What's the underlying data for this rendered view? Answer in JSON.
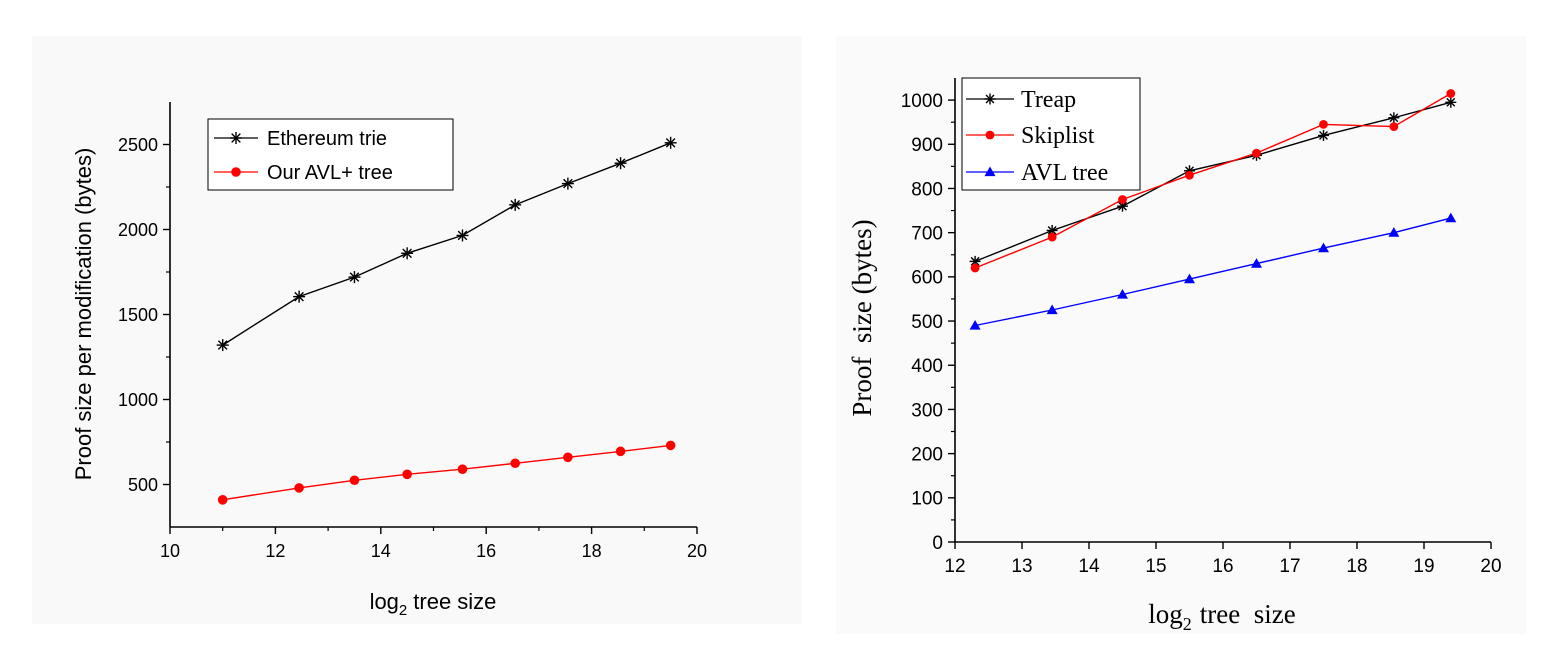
{
  "chart_data": [
    {
      "type": "line",
      "title": "",
      "xlabel": "tree size",
      "xlabel_prefix": "log",
      "xlabel_sub": "2",
      "ylabel": "Proof size per modification (bytes)",
      "xlim": [
        10,
        20
      ],
      "ylim": [
        250,
        2750
      ],
      "xticks": [
        "10",
        "12",
        "14",
        "16",
        "18",
        "20"
      ],
      "yticks": [
        "500",
        "1000",
        "1500",
        "2000",
        "2500"
      ],
      "legend_position": "top-left",
      "series": [
        {
          "name": "Ethereum trie",
          "color": "#000000",
          "marker": "asterisk",
          "x": [
            11,
            12.45,
            13.5,
            14.5,
            15.55,
            16.55,
            17.55,
            18.55,
            19.5
          ],
          "y": [
            1320,
            1605,
            1720,
            1860,
            1965,
            2145,
            2270,
            2390,
            2510
          ]
        },
        {
          "name": "Our AVL+ tree",
          "color": "#ff0000",
          "marker": "circle",
          "x": [
            11,
            12.45,
            13.5,
            14.5,
            15.55,
            16.55,
            17.55,
            18.55,
            19.5
          ],
          "y": [
            410,
            480,
            525,
            560,
            590,
            625,
            660,
            695,
            730
          ]
        }
      ]
    },
    {
      "type": "line",
      "title": "",
      "xlabel": "tree  size",
      "xlabel_prefix": "log",
      "xlabel_sub": "2",
      "ylabel": "Proof  size (bytes)",
      "xlim": [
        12,
        20
      ],
      "ylim": [
        0,
        1050
      ],
      "xticks": [
        "12",
        "13",
        "14",
        "15",
        "16",
        "17",
        "18",
        "19",
        "20"
      ],
      "yticks": [
        "0",
        "100",
        "200",
        "300",
        "400",
        "500",
        "600",
        "700",
        "800",
        "900",
        "1000"
      ],
      "legend_position": "top-left",
      "series": [
        {
          "name": "Treap",
          "color": "#000000",
          "marker": "asterisk",
          "x": [
            12.3,
            13.45,
            14.5,
            15.5,
            16.5,
            17.5,
            18.55,
            19.4
          ],
          "y": [
            635,
            705,
            760,
            840,
            875,
            920,
            960,
            995
          ]
        },
        {
          "name": "Skiplist",
          "color": "#ff0000",
          "marker": "circle",
          "x": [
            12.3,
            13.45,
            14.5,
            15.5,
            16.5,
            17.5,
            18.55,
            19.4
          ],
          "y": [
            620,
            690,
            775,
            830,
            880,
            945,
            940,
            1015
          ]
        },
        {
          "name": "AVL tree",
          "color": "#0000ff",
          "marker": "triangle",
          "x": [
            12.3,
            13.45,
            14.5,
            15.5,
            16.5,
            17.5,
            18.55,
            19.4
          ],
          "y": [
            490,
            525,
            560,
            595,
            630,
            665,
            700,
            733
          ]
        }
      ]
    }
  ]
}
